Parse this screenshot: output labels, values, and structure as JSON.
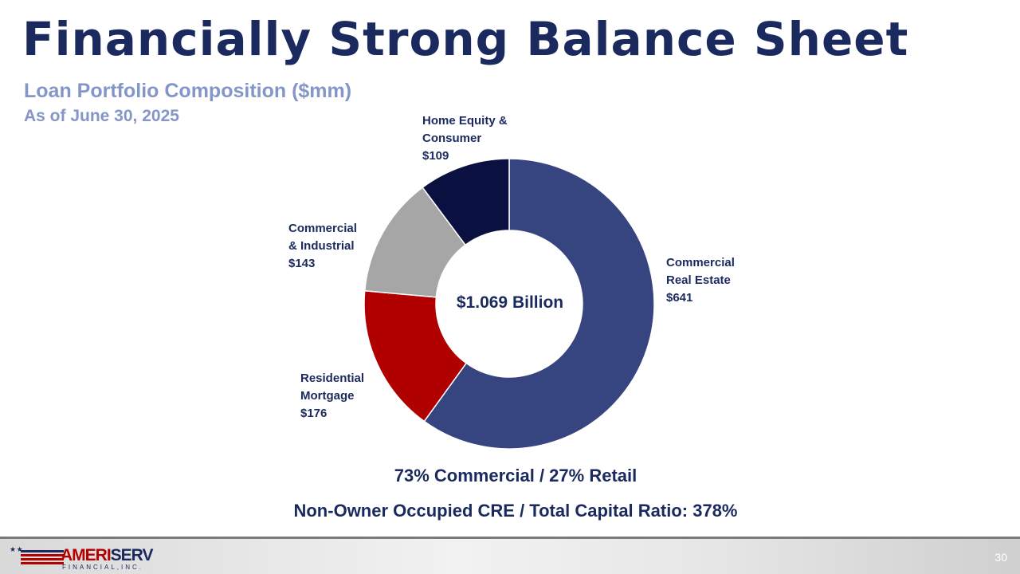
{
  "slide": {
    "title": "Financially Strong Balance Sheet",
    "subtitle": "Loan Portfolio Composition ($mm)",
    "as_of": "As of June 30, 2025",
    "page_number": "30"
  },
  "chart_data": {
    "type": "pie",
    "donut": true,
    "center_label": "$1.069 Billion",
    "categories": [
      "Commercial Real Estate",
      "Residential Mortgage",
      "Commercial & Industrial",
      "Home Equity & Consumer"
    ],
    "values": [
      641,
      176,
      143,
      109
    ],
    "colors": [
      "#36457f",
      "#b00000",
      "#a6a6a6",
      "#0a1040"
    ],
    "labels": [
      {
        "line1": "Commercial",
        "line2": "Real Estate",
        "value": "$641"
      },
      {
        "line1": "Residential",
        "line2": "Mortgage",
        "value": "$176"
      },
      {
        "line1": "Commercial",
        "line2": "& Industrial",
        "value": "$143"
      },
      {
        "line1": "Home Equity &",
        "line2": "Consumer",
        "value": "$109"
      }
    ]
  },
  "stats": {
    "mix": "73% Commercial / 27% Retail",
    "cre_ratio": "Non-Owner Occupied CRE / Total Capital Ratio:  378%"
  },
  "logo": {
    "name_part1": "AMERI",
    "name_part2": "SERV",
    "sub": "FINANCIAL,INC.",
    "stars": "★ ★"
  }
}
